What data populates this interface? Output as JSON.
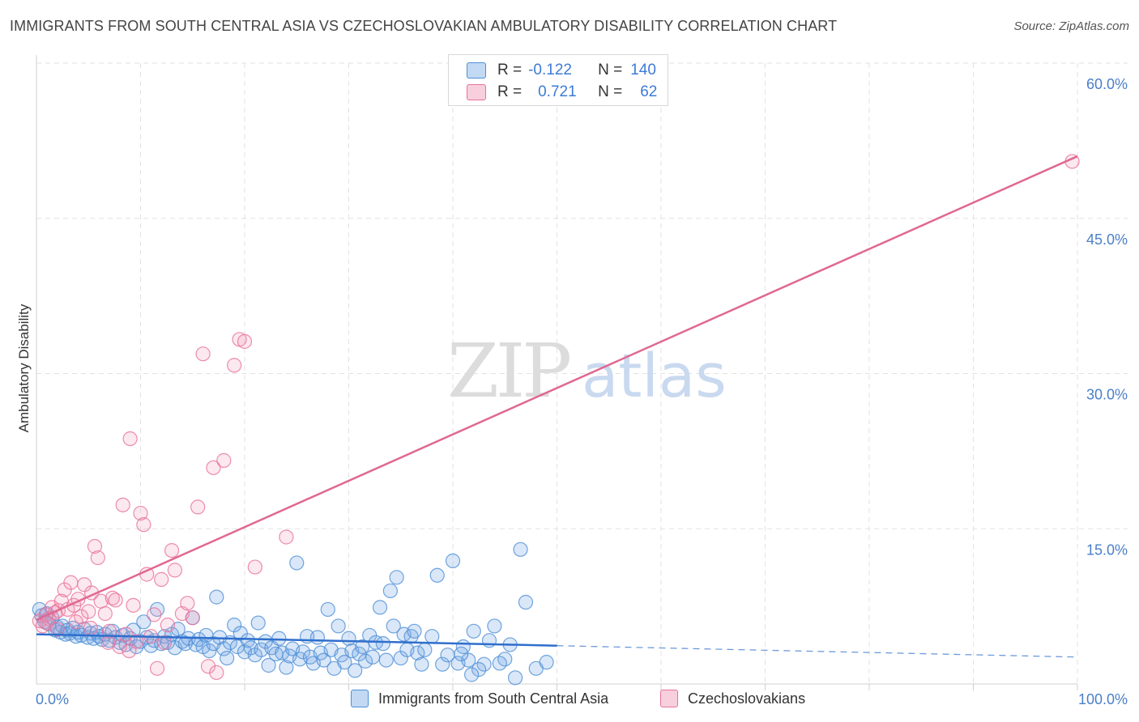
{
  "title": "IMMIGRANTS FROM SOUTH CENTRAL ASIA VS CZECHOSLOVAKIAN AMBULATORY DISABILITY CORRELATION CHART",
  "source": "Source: ZipAtlas.com",
  "watermark": {
    "zip": "ZIP",
    "atlas": "atlas"
  },
  "colors": {
    "blue": "#4d8fd6",
    "blue_fill": "rgba(120,170,230,0.28)",
    "blue_line": "#2f6fcc",
    "pink": "#e8719a",
    "pink_fill": "rgba(240,150,180,0.22)",
    "pink_line": "#e06892",
    "grid": "#e2e2e2",
    "tick_text": "#4a7fc9"
  },
  "legend": {
    "rows": [
      {
        "r_label": "R =",
        "r_value": "-0.122",
        "n_label": "N =",
        "n_value": "140",
        "color": "blue"
      },
      {
        "r_label": "R =",
        "r_value": "0.721",
        "n_label": "N =",
        "n_value": "62",
        "color": "pink"
      }
    ]
  },
  "chart_data": {
    "type": "scatter",
    "xlabel": "",
    "ylabel": "Ambulatory Disability",
    "xlim": [
      0,
      100
    ],
    "ylim": [
      0,
      60
    ],
    "x_tick_labels": [
      "0.0%",
      "100.0%"
    ],
    "y_ticks": [
      15,
      30,
      45,
      60
    ],
    "y_tick_labels": [
      "15.0%",
      "30.0%",
      "45.0%",
      "60.0%"
    ],
    "grid": true,
    "legend_position": "bottom",
    "series": [
      {
        "name": "Immigrants from South Central Asia",
        "color": "blue",
        "trend": {
          "x0": 0,
          "y0": 4.8,
          "x1": 50,
          "y1": 3.7,
          "dash_x1": 100,
          "dash_y1": 2.6
        },
        "points": [
          [
            0.3,
            7.2
          ],
          [
            0.5,
            6.6
          ],
          [
            0.8,
            6.0
          ],
          [
            1.0,
            6.8
          ],
          [
            1.2,
            5.8
          ],
          [
            1.5,
            6.4
          ],
          [
            1.8,
            5.2
          ],
          [
            2.0,
            5.5
          ],
          [
            2.3,
            5.0
          ],
          [
            2.5,
            5.6
          ],
          [
            2.8,
            4.8
          ],
          [
            3.0,
            5.2
          ],
          [
            3.2,
            4.9
          ],
          [
            3.5,
            5.4
          ],
          [
            3.8,
            4.6
          ],
          [
            4.0,
            5.0
          ],
          [
            4.3,
            4.7
          ],
          [
            4.6,
            5.3
          ],
          [
            4.9,
            4.5
          ],
          [
            5.2,
            4.9
          ],
          [
            5.5,
            4.4
          ],
          [
            5.8,
            5.0
          ],
          [
            6.0,
            4.6
          ],
          [
            6.3,
            4.3
          ],
          [
            6.6,
            4.8
          ],
          [
            7.0,
            4.2
          ],
          [
            7.3,
            5.1
          ],
          [
            7.6,
            4.5
          ],
          [
            8.0,
            4.0
          ],
          [
            8.3,
            4.7
          ],
          [
            8.6,
            3.8
          ],
          [
            9.0,
            4.4
          ],
          [
            9.3,
            5.2
          ],
          [
            9.6,
            3.6
          ],
          [
            10.0,
            4.1
          ],
          [
            10.3,
            6.0
          ],
          [
            10.6,
            4.5
          ],
          [
            11.0,
            3.7
          ],
          [
            11.3,
            4.2
          ],
          [
            11.6,
            7.2
          ],
          [
            12.0,
            3.9
          ],
          [
            12.3,
            4.6
          ],
          [
            12.6,
            4.0
          ],
          [
            13.0,
            4.8
          ],
          [
            13.3,
            3.5
          ],
          [
            13.6,
            5.3
          ],
          [
            14.0,
            4.1
          ],
          [
            14.3,
            3.9
          ],
          [
            14.6,
            4.4
          ],
          [
            15.0,
            6.4
          ],
          [
            15.3,
            3.8
          ],
          [
            15.6,
            4.3
          ],
          [
            16.0,
            3.6
          ],
          [
            16.3,
            4.7
          ],
          [
            16.6,
            3.2
          ],
          [
            17.0,
            3.9
          ],
          [
            17.3,
            8.4
          ],
          [
            17.6,
            4.5
          ],
          [
            18.0,
            3.4
          ],
          [
            18.3,
            2.5
          ],
          [
            18.6,
            4.0
          ],
          [
            19.0,
            5.7
          ],
          [
            19.3,
            3.6
          ],
          [
            19.6,
            4.9
          ],
          [
            20.0,
            3.1
          ],
          [
            20.3,
            4.2
          ],
          [
            20.6,
            3.5
          ],
          [
            21.0,
            2.8
          ],
          [
            21.3,
            5.9
          ],
          [
            21.6,
            3.3
          ],
          [
            22.0,
            4.1
          ],
          [
            22.3,
            1.8
          ],
          [
            22.6,
            3.5
          ],
          [
            23.0,
            2.9
          ],
          [
            23.3,
            4.4
          ],
          [
            23.6,
            3.0
          ],
          [
            24.0,
            1.6
          ],
          [
            24.3,
            2.7
          ],
          [
            24.6,
            3.4
          ],
          [
            25.0,
            11.7
          ],
          [
            25.3,
            2.4
          ],
          [
            25.6,
            3.1
          ],
          [
            26.0,
            4.6
          ],
          [
            26.3,
            2.6
          ],
          [
            26.6,
            2.0
          ],
          [
            27.0,
            4.5
          ],
          [
            27.3,
            3.0
          ],
          [
            27.6,
            2.3
          ],
          [
            28.0,
            7.2
          ],
          [
            28.3,
            3.3
          ],
          [
            28.6,
            1.5
          ],
          [
            29.0,
            5.6
          ],
          [
            29.3,
            2.8
          ],
          [
            29.6,
            2.1
          ],
          [
            30.0,
            4.4
          ],
          [
            30.3,
            3.2
          ],
          [
            30.6,
            1.3
          ],
          [
            31.0,
            2.9
          ],
          [
            31.3,
            3.6
          ],
          [
            31.6,
            2.2
          ],
          [
            32.0,
            4.7
          ],
          [
            32.3,
            2.6
          ],
          [
            32.6,
            4.0
          ],
          [
            33.0,
            7.4
          ],
          [
            33.3,
            3.9
          ],
          [
            33.6,
            2.3
          ],
          [
            34.0,
            9.0
          ],
          [
            34.3,
            5.6
          ],
          [
            34.6,
            10.3
          ],
          [
            35.0,
            2.5
          ],
          [
            35.3,
            4.8
          ],
          [
            35.6,
            3.3
          ],
          [
            36.0,
            4.6
          ],
          [
            36.3,
            5.1
          ],
          [
            36.6,
            3.0
          ],
          [
            37.0,
            1.9
          ],
          [
            37.3,
            3.3
          ],
          [
            38.0,
            4.6
          ],
          [
            38.5,
            10.5
          ],
          [
            39.0,
            1.9
          ],
          [
            39.5,
            2.8
          ],
          [
            40.0,
            11.9
          ],
          [
            40.5,
            2.0
          ],
          [
            41.0,
            3.6
          ],
          [
            41.5,
            2.3
          ],
          [
            42.0,
            5.1
          ],
          [
            43.0,
            1.9
          ],
          [
            44.0,
            5.6
          ],
          [
            45.0,
            2.4
          ],
          [
            46.0,
            0.6
          ],
          [
            47.0,
            7.9
          ],
          [
            48.0,
            1.5
          ],
          [
            49.0,
            2.1
          ],
          [
            43.5,
            4.2
          ],
          [
            44.5,
            2.0
          ],
          [
            42.5,
            1.4
          ],
          [
            41.8,
            0.9
          ],
          [
            45.5,
            3.8
          ],
          [
            46.5,
            13.0
          ],
          [
            40.8,
            2.9
          ]
        ]
      },
      {
        "name": "Czechoslovakians",
        "color": "pink",
        "trend": {
          "x0": 0,
          "y0": 6.2,
          "x1": 100,
          "y1": 51.0
        },
        "points": [
          [
            0.3,
            6.1
          ],
          [
            0.6,
            5.6
          ],
          [
            0.9,
            6.7
          ],
          [
            1.2,
            6.3
          ],
          [
            1.5,
            7.4
          ],
          [
            1.8,
            6.9
          ],
          [
            2.1,
            7.1
          ],
          [
            2.4,
            8.0
          ],
          [
            2.7,
            9.1
          ],
          [
            3.0,
            7.2
          ],
          [
            3.3,
            9.8
          ],
          [
            3.6,
            7.6
          ],
          [
            4.0,
            8.2
          ],
          [
            4.3,
            6.5
          ],
          [
            4.6,
            9.6
          ],
          [
            5.0,
            7.0
          ],
          [
            5.3,
            8.8
          ],
          [
            5.6,
            13.3
          ],
          [
            5.9,
            12.2
          ],
          [
            6.2,
            8.0
          ],
          [
            6.6,
            6.8
          ],
          [
            7.0,
            5.1
          ],
          [
            7.3,
            8.3
          ],
          [
            7.6,
            8.1
          ],
          [
            8.0,
            3.6
          ],
          [
            8.3,
            17.3
          ],
          [
            8.6,
            4.8
          ],
          [
            9.0,
            23.7
          ],
          [
            9.3,
            7.6
          ],
          [
            9.6,
            4.1
          ],
          [
            10.0,
            16.5
          ],
          [
            10.3,
            15.4
          ],
          [
            10.6,
            10.6
          ],
          [
            11.0,
            4.6
          ],
          [
            11.3,
            6.7
          ],
          [
            11.6,
            1.5
          ],
          [
            12.0,
            10.1
          ],
          [
            12.6,
            5.7
          ],
          [
            13.0,
            12.9
          ],
          [
            13.3,
            11.0
          ],
          [
            14.0,
            6.8
          ],
          [
            14.5,
            7.8
          ],
          [
            15.0,
            6.4
          ],
          [
            15.5,
            17.1
          ],
          [
            16.0,
            31.9
          ],
          [
            16.5,
            1.7
          ],
          [
            17.0,
            20.9
          ],
          [
            17.3,
            1.1
          ],
          [
            18.0,
            21.6
          ],
          [
            19.0,
            30.8
          ],
          [
            19.5,
            33.3
          ],
          [
            20.0,
            33.1
          ],
          [
            21.0,
            11.3
          ],
          [
            24.0,
            14.2
          ],
          [
            2.0,
            5.3
          ],
          [
            3.8,
            6.0
          ],
          [
            5.2,
            5.4
          ],
          [
            6.9,
            4.0
          ],
          [
            8.9,
            3.2
          ],
          [
            12.3,
            4.0
          ],
          [
            99.5,
            50.5
          ],
          [
            1.0,
            5.9
          ]
        ]
      }
    ]
  },
  "bottom_legend": [
    {
      "label": "Immigrants from South Central Asia",
      "color": "blue"
    },
    {
      "label": "Czechoslovakians",
      "color": "pink"
    }
  ]
}
